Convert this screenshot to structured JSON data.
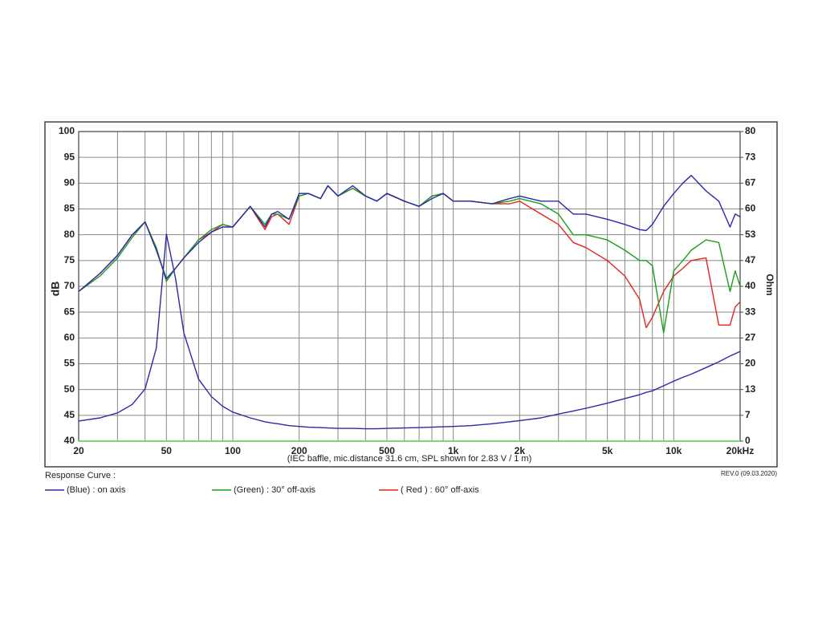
{
  "chart_data": {
    "type": "line",
    "xscale": "log",
    "grid": true,
    "y_label": "dB",
    "y2_label": "Ohm",
    "note": "(IEC baffle, mic.distance 31.6 cm, SPL shown for 2.83 V / 1 m)",
    "legend_title": "Response Curve :",
    "revision": "REV.0 (09.03.2020)",
    "xlim": [
      20,
      20000
    ],
    "ylim": [
      40,
      100
    ],
    "y2lim": [
      0,
      80
    ],
    "xticks": [
      20,
      {
        "value": 30,
        "label": null
      },
      {
        "value": 40,
        "label": null
      },
      50,
      {
        "value": 60,
        "label": null
      },
      {
        "value": 70,
        "label": null
      },
      {
        "value": 80,
        "label": null
      },
      {
        "value": 90,
        "label": null
      },
      100,
      200,
      {
        "value": 300,
        "label": null
      },
      {
        "value": 400,
        "label": null
      },
      500,
      {
        "value": 600,
        "label": null
      },
      {
        "value": 700,
        "label": null
      },
      {
        "value": 800,
        "label": null
      },
      {
        "value": 900,
        "label": null
      },
      {
        "value": 1000,
        "label": "1k"
      },
      {
        "value": 2000,
        "label": "2k"
      },
      {
        "value": 3000,
        "label": null
      },
      {
        "value": 4000,
        "label": null
      },
      {
        "value": 5000,
        "label": "5k"
      },
      {
        "value": 6000,
        "label": null
      },
      {
        "value": 7000,
        "label": null
      },
      {
        "value": 8000,
        "label": null
      },
      {
        "value": 9000,
        "label": null
      },
      {
        "value": 10000,
        "label": "10k"
      },
      {
        "value": 20000,
        "label": "20kHz"
      }
    ],
    "yticks": [
      40,
      45,
      50,
      55,
      60,
      65,
      70,
      75,
      80,
      85,
      90,
      95,
      100
    ],
    "y2ticks": [
      0,
      {
        "value": 6.667,
        "label": "7"
      },
      {
        "value": 13.333,
        "label": "13"
      },
      20,
      {
        "value": 26.667,
        "label": "27"
      },
      {
        "value": 33.333,
        "label": "33"
      },
      40,
      {
        "value": 46.667,
        "label": "47"
      },
      {
        "value": 53.333,
        "label": "53"
      },
      60,
      {
        "value": 66.667,
        "label": "67"
      },
      {
        "value": 73.333,
        "label": "73"
      },
      80
    ],
    "x": [
      20,
      25,
      30,
      35,
      40,
      45,
      50,
      55,
      60,
      70,
      80,
      90,
      100,
      120,
      140,
      150,
      160,
      180,
      200,
      220,
      250,
      270,
      300,
      350,
      400,
      450,
      500,
      600,
      700,
      800,
      900,
      1000,
      1200,
      1500,
      1800,
      2000,
      2500,
      3000,
      3500,
      4000,
      5000,
      6000,
      7000,
      7500,
      8000,
      9000,
      10000,
      11000,
      12000,
      14000,
      16000,
      18000,
      19000,
      20000
    ],
    "series": [
      {
        "name": "(Blue)  : on axis",
        "color": "#2a2aa8",
        "values": [
          69,
          72.5,
          76,
          80,
          82.5,
          77,
          71.5,
          73.5,
          75.5,
          78.5,
          80.5,
          81.5,
          81.5,
          85.5,
          81.5,
          84,
          84.5,
          83,
          88,
          88,
          87,
          89.5,
          87.5,
          89.5,
          87.5,
          86.5,
          88,
          86.5,
          85.5,
          87,
          88,
          86.5,
          86.5,
          86,
          87,
          87.5,
          86.5,
          86.5,
          84,
          84,
          83,
          82,
          81,
          80.8,
          82,
          85.5,
          88,
          90,
          91.5,
          88.5,
          86.5,
          81.5,
          84,
          83.5
        ]
      },
      {
        "name": "(Green) : 30° off-axis",
        "color": "#1aa01a",
        "values": [
          69,
          72,
          75.5,
          79.5,
          82.5,
          77.5,
          71,
          73.5,
          75.5,
          79,
          81,
          82,
          81.5,
          85.5,
          82,
          84,
          84,
          83,
          87.5,
          88,
          87,
          89.5,
          87.5,
          89,
          87.5,
          86.5,
          88,
          86.5,
          85.5,
          87.5,
          88,
          86.5,
          86.5,
          86,
          86.5,
          87,
          86,
          84,
          80,
          80,
          79,
          77,
          75,
          75,
          74,
          61,
          73,
          75,
          77,
          79,
          78.5,
          69,
          73,
          70
        ]
      },
      {
        "name": "( Red ) : 60° off-axis",
        "color": "#e8231e",
        "values": [
          69,
          72.5,
          76,
          80,
          82.5,
          77.5,
          71,
          73.5,
          75.5,
          79,
          80.5,
          82,
          81.5,
          85.5,
          81,
          83.5,
          84,
          82,
          87.5,
          88,
          87,
          89.5,
          87.5,
          89,
          87.5,
          86.5,
          88,
          86.5,
          85.5,
          87.5,
          88,
          86.5,
          86.5,
          86,
          86,
          86.5,
          84,
          82,
          78.5,
          77.5,
          75,
          72,
          67.5,
          62,
          64,
          69,
          72,
          73.5,
          75,
          75.5,
          62.5,
          62.5,
          66,
          67
        ]
      },
      {
        "color": "#2a2aa8",
        "axis": "y2",
        "values": [
          5.2,
          6,
          7.3,
          9.5,
          13.5,
          24,
          53.5,
          42,
          28,
          16,
          11.5,
          9,
          7.5,
          6,
          5,
          4.7,
          4.5,
          4,
          3.8,
          3.6,
          3.5,
          3.4,
          3.3,
          3.3,
          3.2,
          3.2,
          3.3,
          3.4,
          3.5,
          3.6,
          3.7,
          3.8,
          4,
          4.5,
          5,
          5.3,
          6,
          7,
          7.8,
          8.5,
          9.8,
          11,
          12,
          12.6,
          13,
          14.3,
          15.5,
          16.5,
          17.3,
          19,
          20.5,
          22,
          22.6,
          23.2
        ]
      }
    ]
  }
}
